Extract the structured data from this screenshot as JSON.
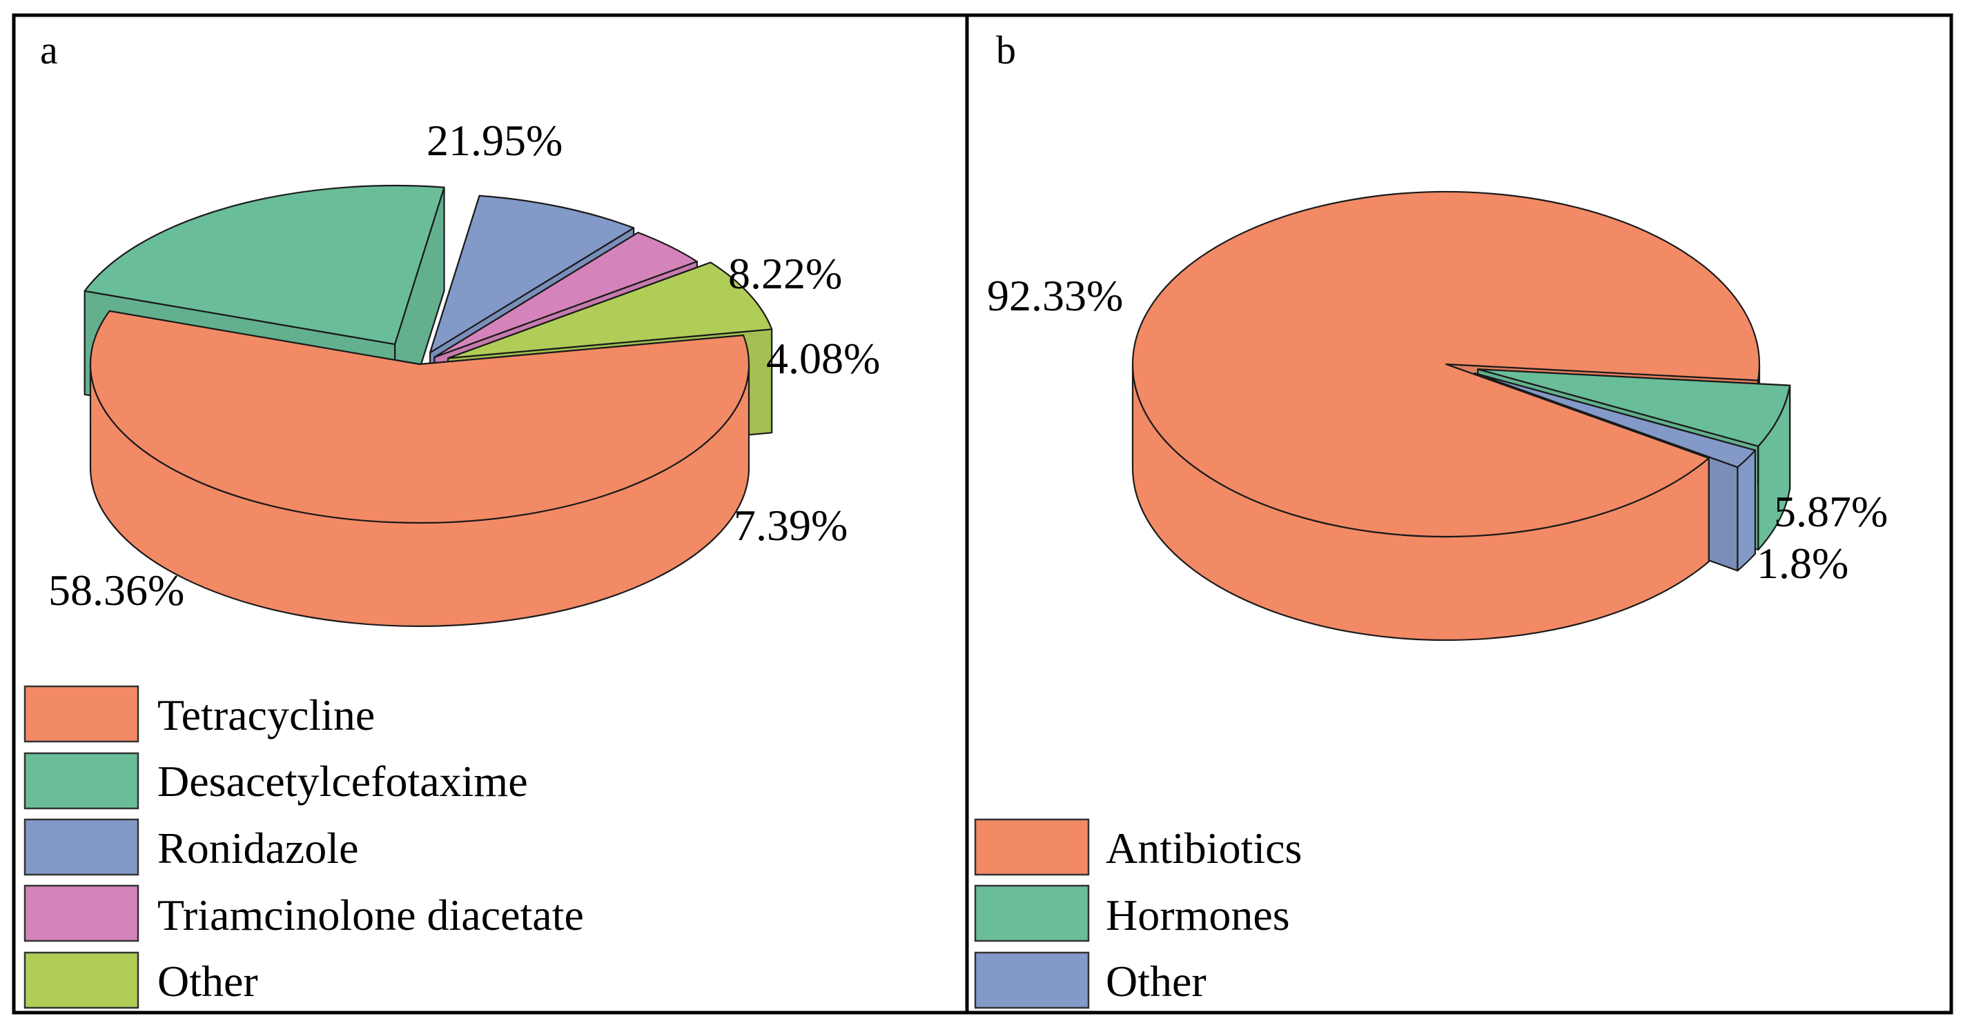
{
  "chart_data": [
    {
      "type": "pie",
      "style": "3d-exploded",
      "panel_label": "a",
      "categories": [
        "Tetracycline",
        "Desacetylcefotaxime",
        "Ronidazole",
        "Triamcinolone diacetate",
        "Other"
      ],
      "values": [
        58.36,
        21.95,
        8.22,
        4.08,
        7.39
      ],
      "labels": [
        "58.36%",
        "21.95%",
        "8.22%",
        "4.08%",
        "7.39%"
      ],
      "colors": [
        "#f28a66",
        "#6abd99",
        "#8399c8",
        "#d584bb",
        "#b0cd58"
      ],
      "legend": [
        "Tetracycline",
        "Desacetylcefotaxime",
        "Ronidazole",
        "Triamcinolone diacetate",
        "Other"
      ],
      "legend_position": "bottom-left"
    },
    {
      "type": "pie",
      "style": "3d-exploded",
      "panel_label": "b",
      "categories": [
        "Antibiotics",
        "Hormones",
        "Other"
      ],
      "values": [
        92.33,
        5.87,
        1.8
      ],
      "labels": [
        "92.33%",
        "5.87%",
        "1.8%"
      ],
      "colors": [
        "#f28a66",
        "#6abd99",
        "#8399c8"
      ],
      "legend": [
        "Antibiotics",
        "Hormones",
        "Other"
      ],
      "legend_position": "bottom-left"
    }
  ]
}
